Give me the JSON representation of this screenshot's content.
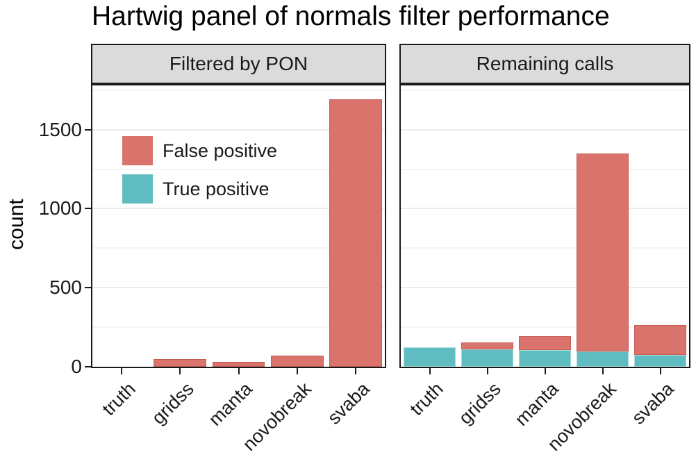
{
  "title": "Hartwig panel of normals filter performance",
  "y_axis": {
    "label": "count",
    "tick_labels": [
      "0",
      "500",
      "1000",
      "1500"
    ]
  },
  "legend": {
    "items": [
      {
        "label": "False positive",
        "color": "#D9736C"
      },
      {
        "label": "True positive",
        "color": "#5FBDC1"
      }
    ]
  },
  "chart_data": {
    "type": "bar",
    "stacked": true,
    "title": "Hartwig panel of normals filter performance",
    "xlabel": "",
    "ylabel": "count",
    "ylim": [
      0,
      1780
    ],
    "y_ticks": [
      0,
      500,
      1000,
      1500
    ],
    "y_minor_ticks": [
      250,
      750,
      1250,
      1750
    ],
    "grid": "major and minor horizontal gridlines, very light grey",
    "legend_position": "inside top-left of first facet",
    "categories": [
      "truth",
      "gridss",
      "manta",
      "novobreak",
      "svaba"
    ],
    "facets": [
      {
        "label": "Filtered by PON",
        "series": [
          {
            "name": "True positive",
            "color": "#5FBDC1",
            "values": [
              0,
              0,
              0,
              0,
              0
            ]
          },
          {
            "name": "False positive",
            "color": "#D9736C",
            "values": [
              0,
              50,
              30,
              70,
              1690
            ]
          }
        ]
      },
      {
        "label": "Remaining calls",
        "series": [
          {
            "name": "True positive",
            "color": "#5FBDC1",
            "values": [
              125,
              110,
              105,
              95,
              75
            ]
          },
          {
            "name": "False positive",
            "color": "#D9736C",
            "values": [
              0,
              45,
              90,
              1255,
              190
            ]
          }
        ]
      }
    ]
  }
}
